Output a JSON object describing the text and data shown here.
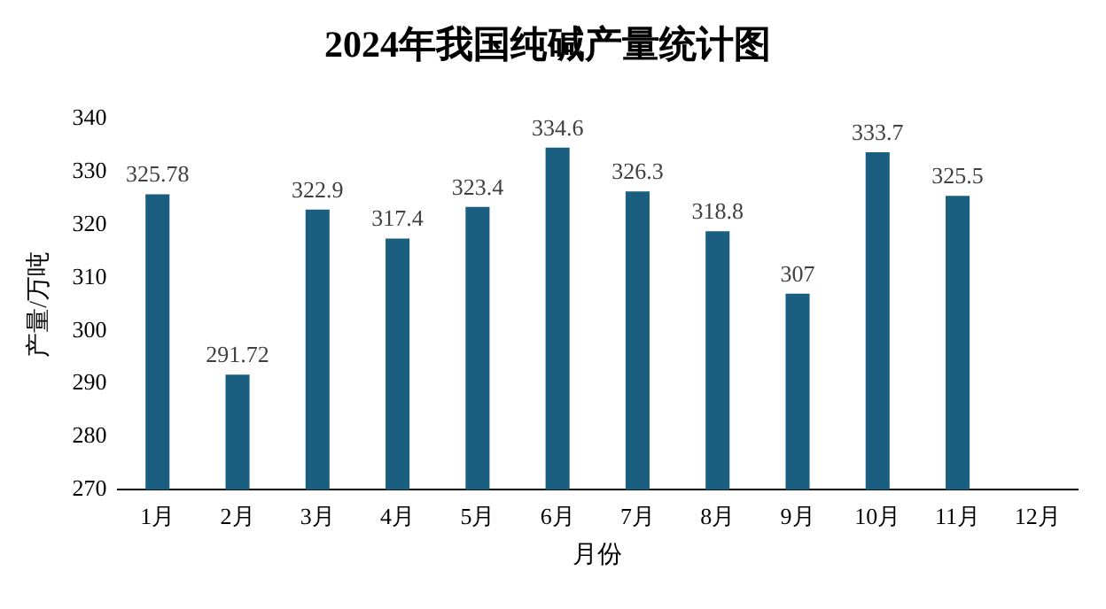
{
  "chart_data": {
    "type": "bar",
    "title": "2024年我国纯碱产量统计图",
    "xlabel": "月份",
    "ylabel": "产量/万吨",
    "categories": [
      "1月",
      "2月",
      "3月",
      "4月",
      "5月",
      "6月",
      "7月",
      "8月",
      "9月",
      "10月",
      "11月",
      "12月"
    ],
    "values": [
      325.78,
      291.72,
      322.9,
      317.4,
      323.4,
      334.6,
      326.3,
      318.8,
      307,
      333.7,
      325.5,
      null
    ],
    "color": "#1a5f80",
    "ylim": [
      270,
      340
    ],
    "yticks": [
      270,
      280,
      290,
      300,
      310,
      320,
      330,
      340
    ],
    "grid": false,
    "legend": false,
    "data_labels": true
  }
}
